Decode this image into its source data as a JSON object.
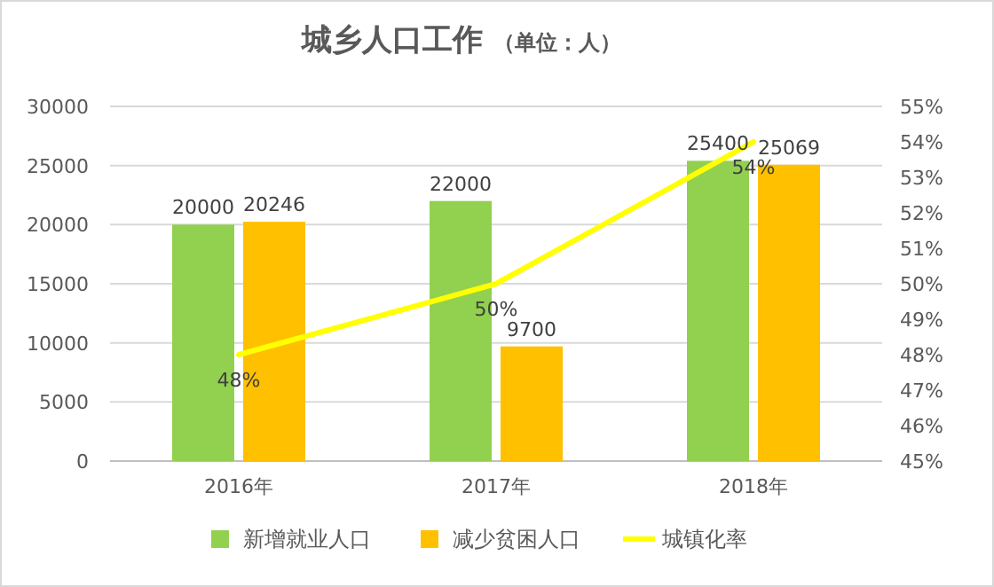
{
  "chart_data": {
    "type": "bar",
    "title": "城乡人口工作",
    "subtitle": "（单位：人）",
    "categories": [
      "2016年",
      "2017年",
      "2018年"
    ],
    "series": [
      {
        "name": "新增就业人口",
        "color": "#92d050",
        "values": [
          20000,
          22000,
          25400
        ],
        "value_labels": [
          "20000",
          "22000",
          "25400"
        ]
      },
      {
        "name": "减少贫困人口",
        "color": "#ffc000",
        "values": [
          20246,
          9700,
          25069
        ],
        "value_labels": [
          "20246",
          "9700",
          "25069"
        ]
      },
      {
        "name": "城镇化率",
        "type": "line",
        "axis": "y2",
        "color": "#ffff00",
        "values": [
          48,
          50,
          54
        ],
        "value_labels": [
          "48%",
          "50%",
          "54%"
        ]
      }
    ],
    "ylim": [
      0,
      30000
    ],
    "yticks": [
      0,
      5000,
      10000,
      15000,
      20000,
      25000,
      30000
    ],
    "y2lim": [
      45,
      55
    ],
    "y2ticks": [
      {
        "value": 45,
        "label": "45%"
      },
      {
        "value": 46,
        "label": "46%"
      },
      {
        "value": 47,
        "label": "47%"
      },
      {
        "value": 48,
        "label": "48%"
      },
      {
        "value": 49,
        "label": "49%"
      },
      {
        "value": 50,
        "label": "50%"
      },
      {
        "value": 51,
        "label": "51%"
      },
      {
        "value": 52,
        "label": "52%"
      },
      {
        "value": 53,
        "label": "53%"
      },
      {
        "value": 54,
        "label": "54%"
      },
      {
        "value": 55,
        "label": "55%"
      }
    ],
    "grid": "y",
    "legend": "bottom"
  }
}
